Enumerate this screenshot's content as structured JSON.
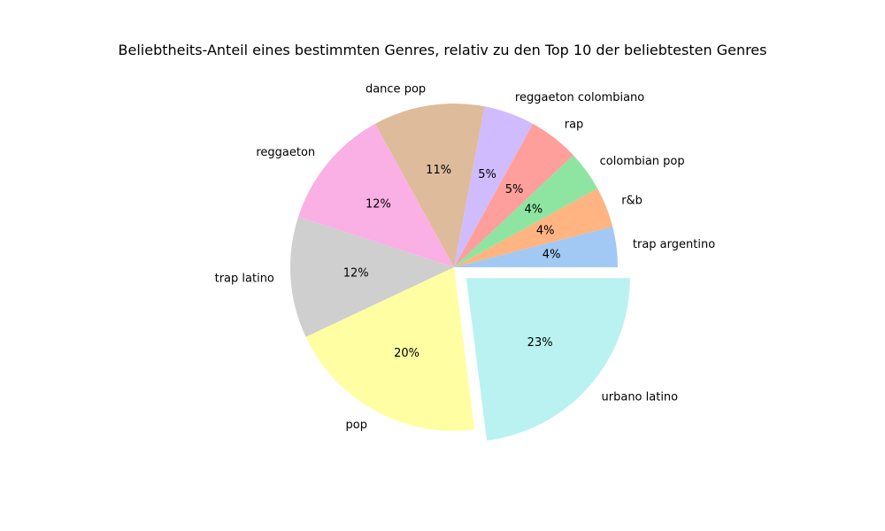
{
  "chart_data": {
    "type": "pie",
    "title": "Beliebtheits-Anteil eines bestimmten Genres, relativ zu den Top 10 der beliebtesten Genres",
    "start_angle": 0,
    "direction": "counterclockwise",
    "slices": [
      {
        "label": "trap argentino",
        "value": 4,
        "pct_label": "4%",
        "color": "#a1c9f4",
        "explode": false
      },
      {
        "label": "r&b",
        "value": 4,
        "pct_label": "4%",
        "color": "#ffb482",
        "explode": false
      },
      {
        "label": "colombian pop",
        "value": 4,
        "pct_label": "4%",
        "color": "#8de5a1",
        "explode": false
      },
      {
        "label": "rap",
        "value": 5,
        "pct_label": "5%",
        "color": "#ff9f9b",
        "explode": false
      },
      {
        "label": "reggaeton colombiano",
        "value": 5,
        "pct_label": "5%",
        "color": "#d0bbff",
        "explode": false
      },
      {
        "label": "dance pop",
        "value": 11,
        "pct_label": "11%",
        "color": "#debb9b",
        "explode": false
      },
      {
        "label": "reggaeton",
        "value": 12,
        "pct_label": "12%",
        "color": "#fab0e4",
        "explode": false
      },
      {
        "label": "trap latino",
        "value": 12,
        "pct_label": "12%",
        "color": "#cfcfcf",
        "explode": false
      },
      {
        "label": "pop",
        "value": 20,
        "pct_label": "20%",
        "color": "#fffea3",
        "explode": false
      },
      {
        "label": "urbano latino",
        "value": 23,
        "pct_label": "23%",
        "color": "#b9f2f0",
        "explode": true
      }
    ]
  }
}
